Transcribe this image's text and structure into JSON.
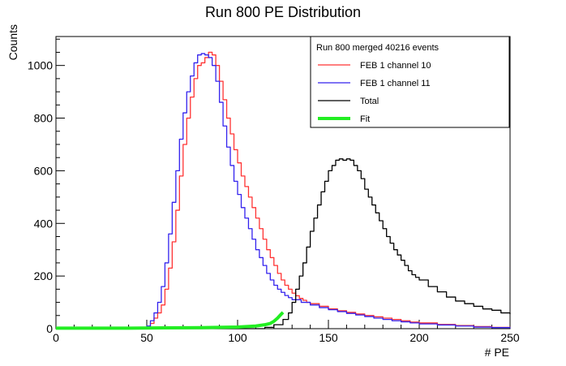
{
  "chart_data": {
    "type": "line",
    "title": "Run 800 PE Distribution",
    "xlabel": "# PE",
    "ylabel": "Counts",
    "xlim": [
      0,
      250
    ],
    "ylim": [
      0,
      1110
    ],
    "xticks": [
      0,
      50,
      100,
      150,
      200,
      250
    ],
    "yticks": [
      0,
      200,
      400,
      600,
      800,
      1000
    ],
    "legend": {
      "placement": "top-right",
      "header": "Run 800 merged 40216 events"
    },
    "series": [
      {
        "name": "FEB 1 channel 10",
        "color": "#ff3333",
        "style": "step",
        "points": [
          [
            0,
            0
          ],
          [
            48,
            0
          ],
          [
            50,
            5
          ],
          [
            52,
            20
          ],
          [
            54,
            40
          ],
          [
            56,
            60
          ],
          [
            58,
            90
          ],
          [
            60,
            150
          ],
          [
            62,
            230
          ],
          [
            64,
            330
          ],
          [
            66,
            450
          ],
          [
            68,
            580
          ],
          [
            70,
            700
          ],
          [
            72,
            800
          ],
          [
            74,
            880
          ],
          [
            76,
            950
          ],
          [
            78,
            1000
          ],
          [
            80,
            1010
          ],
          [
            82,
            1030
          ],
          [
            84,
            1050
          ],
          [
            86,
            1040
          ],
          [
            88,
            1000
          ],
          [
            90,
            940
          ],
          [
            92,
            870
          ],
          [
            94,
            800
          ],
          [
            96,
            740
          ],
          [
            98,
            680
          ],
          [
            100,
            630
          ],
          [
            102,
            580
          ],
          [
            104,
            540
          ],
          [
            106,
            500
          ],
          [
            108,
            460
          ],
          [
            110,
            420
          ],
          [
            112,
            380
          ],
          [
            114,
            340
          ],
          [
            116,
            300
          ],
          [
            118,
            270
          ],
          [
            120,
            240
          ],
          [
            122,
            210
          ],
          [
            124,
            185
          ],
          [
            126,
            165
          ],
          [
            128,
            150
          ],
          [
            130,
            135
          ],
          [
            132,
            125
          ],
          [
            134,
            115
          ],
          [
            136,
            108
          ],
          [
            138,
            100
          ],
          [
            140,
            95
          ],
          [
            145,
            85
          ],
          [
            150,
            75
          ],
          [
            155,
            68
          ],
          [
            160,
            62
          ],
          [
            165,
            56
          ],
          [
            170,
            50
          ],
          [
            175,
            45
          ],
          [
            180,
            40
          ],
          [
            185,
            35
          ],
          [
            190,
            30
          ],
          [
            195,
            25
          ],
          [
            200,
            22
          ],
          [
            210,
            16
          ],
          [
            220,
            12
          ],
          [
            230,
            8
          ],
          [
            240,
            5
          ],
          [
            250,
            3
          ]
        ]
      },
      {
        "name": "FEB 1 channel 11",
        "color": "#3322ee",
        "style": "step",
        "points": [
          [
            0,
            0
          ],
          [
            48,
            0
          ],
          [
            50,
            10
          ],
          [
            52,
            30
          ],
          [
            54,
            60
          ],
          [
            56,
            100
          ],
          [
            58,
            160
          ],
          [
            60,
            250
          ],
          [
            62,
            360
          ],
          [
            64,
            480
          ],
          [
            66,
            600
          ],
          [
            68,
            720
          ],
          [
            70,
            820
          ],
          [
            72,
            900
          ],
          [
            74,
            960
          ],
          [
            76,
            1010
          ],
          [
            78,
            1040
          ],
          [
            80,
            1045
          ],
          [
            82,
            1040
          ],
          [
            84,
            1030
          ],
          [
            86,
            1000
          ],
          [
            88,
            940
          ],
          [
            90,
            860
          ],
          [
            92,
            770
          ],
          [
            94,
            690
          ],
          [
            96,
            620
          ],
          [
            98,
            560
          ],
          [
            100,
            510
          ],
          [
            102,
            460
          ],
          [
            104,
            420
          ],
          [
            106,
            380
          ],
          [
            108,
            340
          ],
          [
            110,
            300
          ],
          [
            112,
            270
          ],
          [
            114,
            240
          ],
          [
            116,
            210
          ],
          [
            118,
            185
          ],
          [
            120,
            165
          ],
          [
            122,
            150
          ],
          [
            124,
            138
          ],
          [
            126,
            126
          ],
          [
            128,
            118
          ],
          [
            130,
            110
          ],
          [
            135,
            100
          ],
          [
            140,
            90
          ],
          [
            145,
            80
          ],
          [
            150,
            72
          ],
          [
            155,
            65
          ],
          [
            160,
            58
          ],
          [
            165,
            52
          ],
          [
            170,
            46
          ],
          [
            175,
            40
          ],
          [
            180,
            35
          ],
          [
            185,
            30
          ],
          [
            190,
            26
          ],
          [
            195,
            22
          ],
          [
            200,
            18
          ],
          [
            210,
            14
          ],
          [
            220,
            10
          ],
          [
            230,
            6
          ],
          [
            240,
            4
          ],
          [
            250,
            2
          ]
        ]
      },
      {
        "name": "Total",
        "color": "#000000",
        "style": "step",
        "points": [
          [
            0,
            0
          ],
          [
            110,
            0
          ],
          [
            115,
            5
          ],
          [
            120,
            15
          ],
          [
            125,
            35
          ],
          [
            128,
            60
          ],
          [
            130,
            100
          ],
          [
            132,
            150
          ],
          [
            134,
            200
          ],
          [
            136,
            250
          ],
          [
            138,
            310
          ],
          [
            140,
            370
          ],
          [
            142,
            420
          ],
          [
            144,
            470
          ],
          [
            146,
            520
          ],
          [
            148,
            560
          ],
          [
            150,
            600
          ],
          [
            152,
            620
          ],
          [
            154,
            640
          ],
          [
            156,
            645
          ],
          [
            158,
            640
          ],
          [
            160,
            645
          ],
          [
            162,
            640
          ],
          [
            164,
            620
          ],
          [
            166,
            600
          ],
          [
            168,
            570
          ],
          [
            170,
            530
          ],
          [
            172,
            500
          ],
          [
            174,
            470
          ],
          [
            176,
            440
          ],
          [
            178,
            410
          ],
          [
            180,
            380
          ],
          [
            182,
            350
          ],
          [
            184,
            325
          ],
          [
            186,
            300
          ],
          [
            188,
            280
          ],
          [
            190,
            260
          ],
          [
            192,
            240
          ],
          [
            194,
            220
          ],
          [
            196,
            205
          ],
          [
            198,
            195
          ],
          [
            200,
            185
          ],
          [
            205,
            160
          ],
          [
            210,
            140
          ],
          [
            215,
            120
          ],
          [
            220,
            105
          ],
          [
            225,
            95
          ],
          [
            230,
            85
          ],
          [
            235,
            75
          ],
          [
            240,
            70
          ],
          [
            245,
            60
          ],
          [
            250,
            55
          ]
        ]
      },
      {
        "name": "Fit",
        "color": "#22ee22",
        "style": "smooth",
        "points": [
          [
            0,
            2
          ],
          [
            20,
            2
          ],
          [
            40,
            2
          ],
          [
            60,
            3
          ],
          [
            80,
            4
          ],
          [
            100,
            6
          ],
          [
            110,
            10
          ],
          [
            115,
            15
          ],
          [
            118,
            20
          ],
          [
            120,
            28
          ],
          [
            122,
            40
          ],
          [
            124,
            55
          ],
          [
            125,
            62
          ]
        ]
      }
    ]
  }
}
